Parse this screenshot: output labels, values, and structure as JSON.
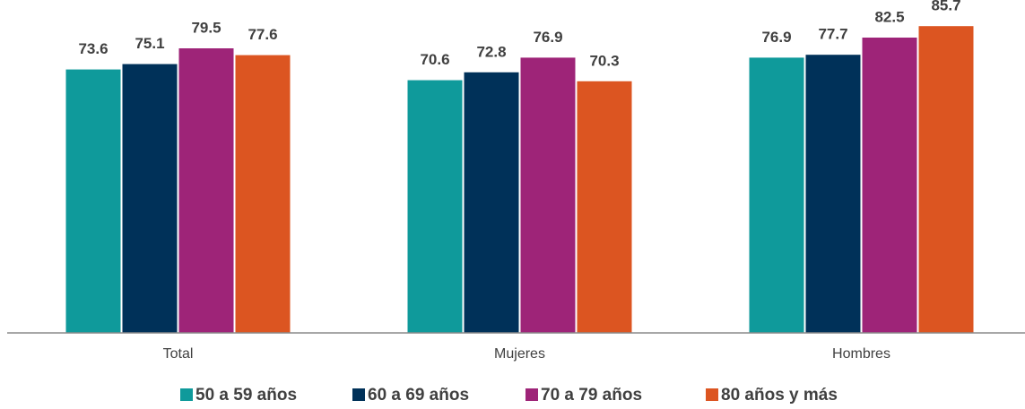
{
  "chart_data": {
    "type": "bar",
    "categories": [
      "Total",
      "Mujeres",
      "Hombres"
    ],
    "series": [
      {
        "name": "50 a 59 años",
        "color": "#0f9a9b",
        "values": [
          73.6,
          70.6,
          76.9
        ]
      },
      {
        "name": "60 a 69 años",
        "color": "#003159",
        "values": [
          75.1,
          72.8,
          77.7
        ]
      },
      {
        "name": "70 a 79 años",
        "color": "#9e2478",
        "values": [
          79.5,
          76.9,
          82.5
        ]
      },
      {
        "name": "80 años y más",
        "color": "#dc5521",
        "values": [
          77.6,
          70.3,
          85.7
        ]
      }
    ],
    "ylim": [
      0,
      90
    ]
  }
}
